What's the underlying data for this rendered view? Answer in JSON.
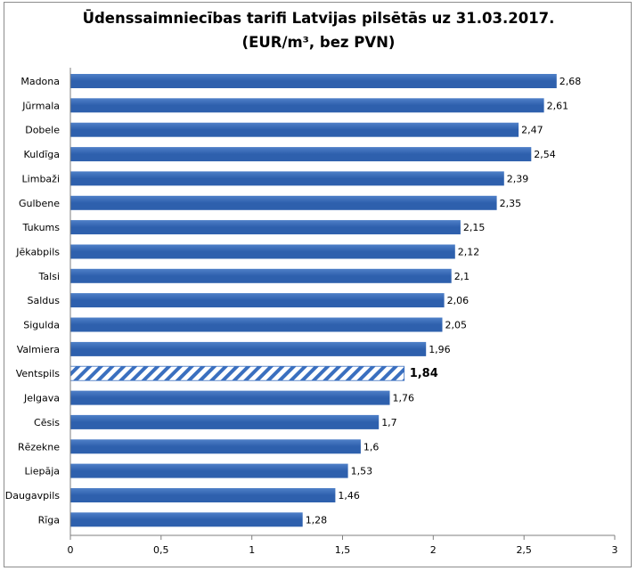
{
  "chart_data": {
    "type": "bar",
    "orientation": "horizontal",
    "title_lines": [
      "Ūdenssaimniecības  tarifi Latvijas pilsētās uz 31.03.2017.",
      "(EUR/m³, bez PVN)"
    ],
    "categories": [
      "Madona",
      "Jūrmala",
      "Dobele",
      "Kuldīga",
      "Limbaži",
      "Gulbene",
      "Tukums",
      "Jēkabpils",
      "Talsi",
      "Saldus",
      "Sigulda",
      "Valmiera",
      "Ventspils",
      "Jelgava",
      "Cēsis",
      "Rēzekne",
      "Liepāja",
      "Daugavpils",
      "Rīga"
    ],
    "values": [
      2.68,
      2.61,
      2.47,
      2.54,
      2.39,
      2.35,
      2.15,
      2.12,
      2.1,
      2.06,
      2.05,
      1.96,
      1.84,
      1.76,
      1.7,
      1.6,
      1.53,
      1.46,
      1.28
    ],
    "value_labels": [
      "2,68",
      "2,61",
      "2,47",
      "2,54",
      "2,39",
      "2,35",
      "2,15",
      "2,12",
      "2,1",
      "2,06",
      "2,05",
      "1,96",
      "1,84",
      "1,76",
      "1,7",
      "1,6",
      "1,53",
      "1,46",
      "1,28"
    ],
    "highlight_category": "Ventspils",
    "xlim": [
      0,
      3
    ],
    "x_ticks": [
      0,
      0.5,
      1,
      1.5,
      2,
      2.5,
      3
    ],
    "x_tick_labels": [
      "0",
      "0,5",
      "1",
      "1,5",
      "2",
      "2,5",
      "3"
    ],
    "grid": false,
    "legend": "none",
    "colors": {
      "bar": "#2e60ad",
      "bar_light": "#4f80c8",
      "highlight_stripe": "#3a6fbf",
      "axis": "#7f7f7f"
    }
  }
}
